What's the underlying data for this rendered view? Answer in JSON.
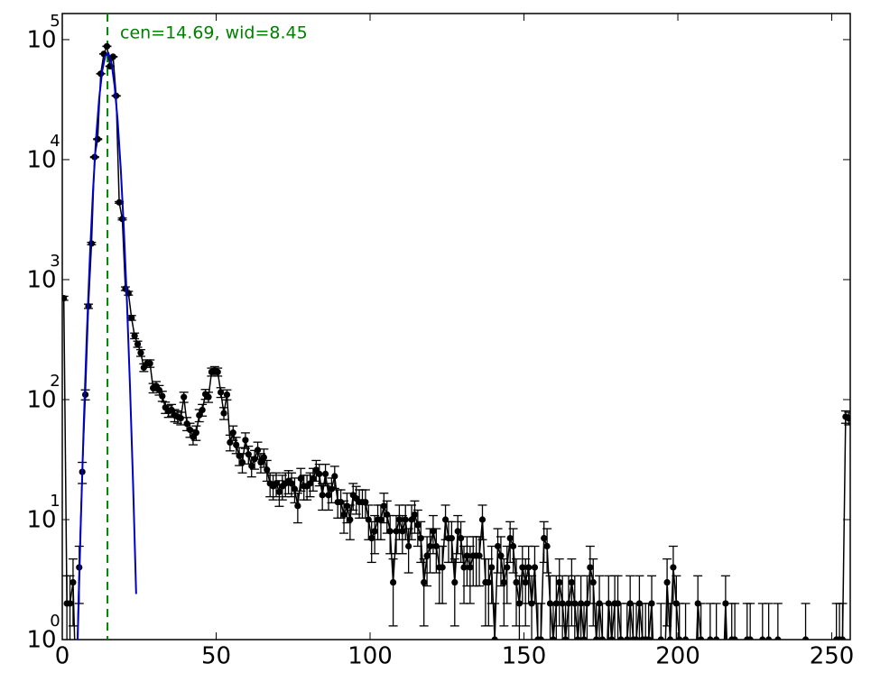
{
  "chart_data": {
    "type": "errorbar",
    "log_y": true,
    "annotation": "cen=14.69, wid=8.45",
    "vline": 14.69,
    "vline_color": "#008000",
    "xlim": [
      0,
      256
    ],
    "xticks": [
      0,
      50,
      100,
      150,
      200,
      250
    ],
    "ylim": [
      1,
      165000
    ],
    "yticks": [
      {
        "value": 1,
        "label": "10",
        "exponent": "0"
      },
      {
        "value": 10,
        "label": "10",
        "exponent": "1"
      },
      {
        "value": 100,
        "label": "10",
        "exponent": "2"
      },
      {
        "value": 1000,
        "label": "10",
        "exponent": "3"
      },
      {
        "value": 10000,
        "label": "10",
        "exponent": "4"
      },
      {
        "value": 100000,
        "label": "10",
        "exponent": "5"
      }
    ],
    "series": [
      {
        "color": "#000000",
        "values": [
          700,
          2,
          2,
          3,
          0,
          4,
          25,
          110,
          600,
          2000,
          10500,
          14800,
          52000,
          76000,
          88000,
          60000,
          72000,
          34000,
          4400,
          3200,
          840,
          770,
          480,
          340,
          290,
          245,
          185,
          200,
          200,
          125,
          130,
          120,
          107,
          86,
          80,
          82,
          74,
          72,
          70,
          105,
          63,
          56,
          49,
          53,
          74,
          82,
          111,
          105,
          170,
          175,
          170,
          115,
          77,
          110,
          44,
          53,
          42,
          34,
          30,
          46,
          35,
          28,
          32,
          38,
          30,
          33,
          26,
          20,
          19,
          20,
          17,
          19,
          20,
          21,
          20,
          18,
          13,
          22,
          19,
          19,
          20,
          22,
          26,
          24,
          16,
          24,
          16,
          18,
          23,
          14,
          14,
          11,
          13,
          10,
          16,
          15,
          14,
          14,
          14,
          10,
          7,
          8,
          10,
          10,
          13,
          11,
          8,
          3,
          8,
          10,
          8,
          10,
          6,
          10,
          11,
          9,
          7,
          3,
          5,
          6,
          8,
          6,
          4,
          4,
          10,
          7,
          7,
          3,
          8,
          7,
          4,
          5,
          4,
          5,
          5,
          5,
          10,
          3,
          3,
          4,
          1,
          6,
          5,
          3,
          4,
          7,
          6,
          3,
          2,
          4,
          3,
          4,
          2,
          4,
          1,
          1,
          7,
          6,
          2,
          1,
          2,
          3,
          2,
          1,
          2,
          3,
          2,
          1,
          2,
          1,
          2,
          4,
          3,
          1,
          2,
          1,
          0,
          2,
          1,
          2,
          2,
          1,
          0,
          1,
          2,
          1,
          1,
          2,
          1,
          1,
          1,
          2,
          0,
          0,
          1,
          0,
          3,
          1,
          4,
          2,
          1,
          0,
          1,
          0,
          0,
          0,
          2,
          1,
          0,
          0,
          1,
          0,
          1,
          0,
          0,
          2,
          0,
          1,
          1,
          0,
          0,
          0,
          1,
          1,
          0,
          0,
          0,
          1,
          0,
          1,
          0,
          0,
          1,
          0,
          0,
          0,
          0,
          0,
          0,
          0,
          0,
          1,
          0,
          0,
          0,
          0,
          0,
          0,
          0,
          0,
          0,
          1,
          1,
          1,
          72,
          70
        ],
        "errors": [
          26.5,
          1.4,
          1.4,
          1.7,
          0,
          2,
          5,
          10.5,
          24.5,
          44.7,
          102.5,
          121.7,
          228,
          275.7,
          296.6,
          244.9,
          268.3,
          184.4,
          66.3,
          56.6,
          29,
          27.7,
          21.9,
          18.4,
          17,
          15.7,
          13.6,
          14.1,
          14.1,
          11.2,
          11.4,
          11,
          10.3,
          9.3,
          8.9,
          9.1,
          8.6,
          8.5,
          8.4,
          10.2,
          7.9,
          7.5,
          7,
          7.3,
          8.6,
          9.1,
          10.5,
          10.2,
          13,
          13.2,
          13,
          10.7,
          8.8,
          10.5,
          6.6,
          7.3,
          6.5,
          5.8,
          5.5,
          6.8,
          5.9,
          5.3,
          5.7,
          6.2,
          5.5,
          5.7,
          5.1,
          4.5,
          4.4,
          4.5,
          4.1,
          4.4,
          4.5,
          4.6,
          4.5,
          4.2,
          3.6,
          4.7,
          4.4,
          4.4,
          4.5,
          4.7,
          5.1,
          4.9,
          4,
          4.9,
          4,
          4.2,
          4.8,
          3.7,
          3.7,
          3.3,
          3.6,
          3.2,
          4,
          3.9,
          3.7,
          3.7,
          3.7,
          3.2,
          2.6,
          2.8,
          3.2,
          3.2,
          3.6,
          3.3,
          2.8,
          1.7,
          2.8,
          3.2,
          2.8,
          3.2,
          2.4,
          3.2,
          3.3,
          3,
          2.6,
          1.7,
          2.2,
          2.4,
          2.8,
          2.4,
          2,
          2,
          3.2,
          2.6,
          2.6,
          1.7,
          2.8,
          2.6,
          2,
          2.2,
          2,
          2.2,
          2.2,
          2.2,
          3.2,
          1.7,
          1.7,
          2,
          1,
          2.4,
          2.2,
          1.7,
          2,
          2.6,
          2.4,
          1.7,
          1.4,
          2,
          1.7,
          2,
          1.4,
          2,
          1,
          1,
          2.6,
          2.4,
          1.4,
          1,
          1.4,
          1.7,
          1.4,
          1,
          1.4,
          1.7,
          1.4,
          1,
          1.4,
          1,
          1.4,
          2,
          1.7,
          1,
          1.4,
          1,
          0,
          1.4,
          1,
          1.4,
          1.4,
          1,
          0,
          1,
          1.4,
          1,
          1,
          1.4,
          1,
          1,
          1,
          1.4,
          0,
          0,
          1,
          0,
          1.7,
          1,
          2,
          1.4,
          1,
          0,
          1,
          0,
          0,
          0,
          1.4,
          1,
          0,
          0,
          1,
          0,
          1,
          0,
          0,
          1.4,
          0,
          1,
          1,
          0,
          0,
          0,
          1,
          1,
          0,
          0,
          0,
          1,
          0,
          1,
          0,
          0,
          1,
          0,
          0,
          0,
          0,
          0,
          0,
          0,
          0,
          1,
          0,
          0,
          0,
          0,
          0,
          0,
          0,
          0,
          0,
          1,
          1,
          1,
          8.5,
          8.4
        ]
      },
      {
        "color": "#0000cc",
        "type": "line",
        "x": [
          5,
          6,
          7,
          8,
          9,
          10,
          11,
          12,
          13,
          14,
          15,
          16,
          17,
          18,
          19,
          20,
          21,
          22,
          23,
          24
        ],
        "values": [
          1,
          9.1,
          65,
          363,
          1610,
          5580,
          15300,
          32700,
          55400,
          73700,
          77100,
          63500,
          41100,
          21000,
          8400,
          2660,
          660,
          129,
          20,
          2.4
        ]
      }
    ]
  }
}
